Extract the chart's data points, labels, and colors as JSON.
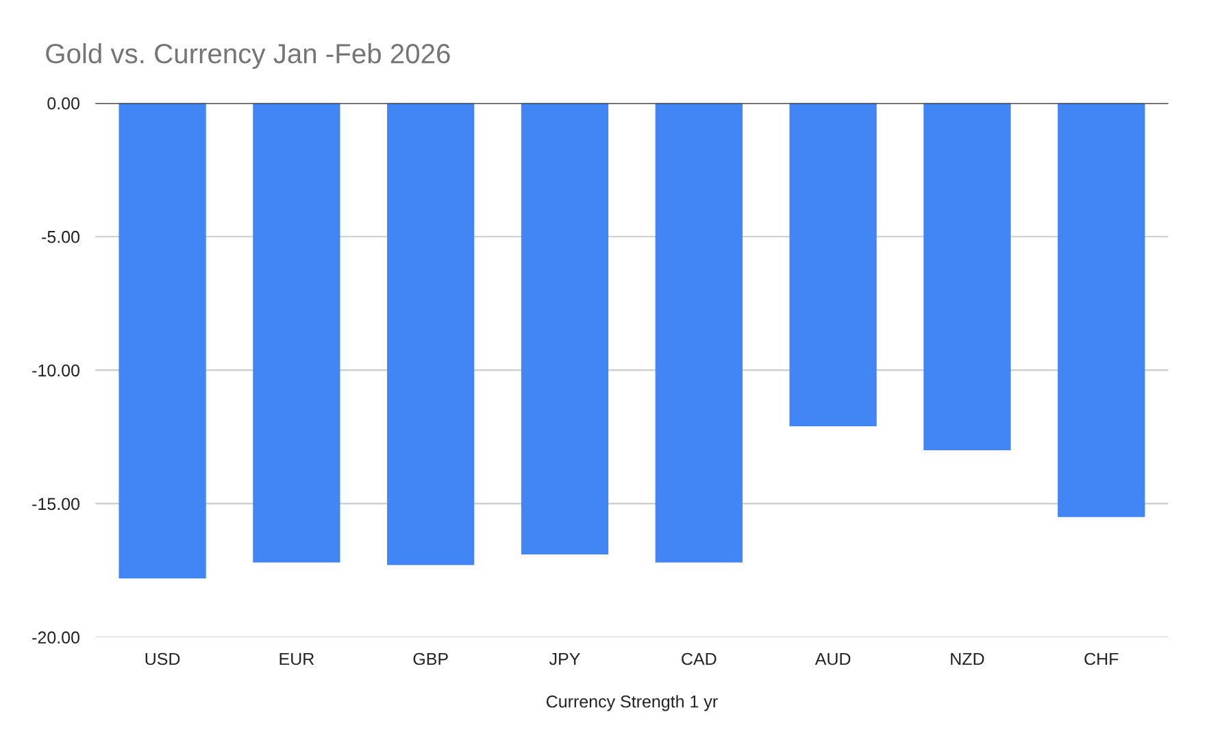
{
  "chart_data": {
    "type": "bar",
    "title": "Gold vs. Currency Jan -Feb 2026",
    "xlabel": "Currency Strength 1 yr",
    "categories": [
      "USD",
      "EUR",
      "GBP",
      "JPY",
      "CAD",
      "AUD",
      "NZD",
      "CHF"
    ],
    "values": [
      -17.8,
      -17.2,
      -17.3,
      -16.9,
      -17.2,
      -12.1,
      -13.0,
      -15.5
    ],
    "color": "#4285f4",
    "ylim": [
      -20,
      0
    ],
    "yticks": [
      {
        "value": -20,
        "label": "-20.00"
      },
      {
        "value": -15,
        "label": "-15.00"
      },
      {
        "value": -10,
        "label": "-10.00"
      },
      {
        "value": -5,
        "label": "-5.00"
      },
      {
        "value": 0,
        "label": "0.00"
      }
    ],
    "grid": "y"
  }
}
